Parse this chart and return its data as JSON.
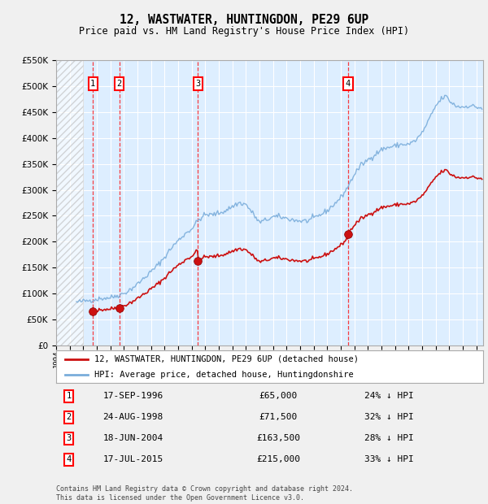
{
  "title": "12, WASTWATER, HUNTINGDON, PE29 6UP",
  "subtitle": "Price paid vs. HM Land Registry's House Price Index (HPI)",
  "footer": "Contains HM Land Registry data © Crown copyright and database right 2024.\nThis data is licensed under the Open Government Licence v3.0.",
  "legend_line1": "12, WASTWATER, HUNTINGDON, PE29 6UP (detached house)",
  "legend_line2": "HPI: Average price, detached house, Huntingdonshire",
  "purchases": [
    {
      "num": 1,
      "date": "17-SEP-1996",
      "year": 1996.72,
      "price": 65000,
      "pct": "24% ↓ HPI"
    },
    {
      "num": 2,
      "date": "24-AUG-1998",
      "year": 1998.65,
      "price": 71500,
      "pct": "32% ↓ HPI"
    },
    {
      "num": 3,
      "date": "18-JUN-2004",
      "year": 2004.46,
      "price": 163500,
      "pct": "28% ↓ HPI"
    },
    {
      "num": 4,
      "date": "17-JUL-2015",
      "year": 2015.54,
      "price": 215000,
      "pct": "33% ↓ HPI"
    }
  ],
  "hpi_color": "#7aaddb",
  "price_color": "#cc1111",
  "marker_color": "#cc1111",
  "bg_color": "#ddeeff",
  "grid_color": "#ffffff",
  "ylim": [
    0,
    550000
  ],
  "xlim_start": 1994.0,
  "xlim_end": 2025.5,
  "hpi_data_start_year": 1996.0,
  "hatch_end_year": 1996.0
}
